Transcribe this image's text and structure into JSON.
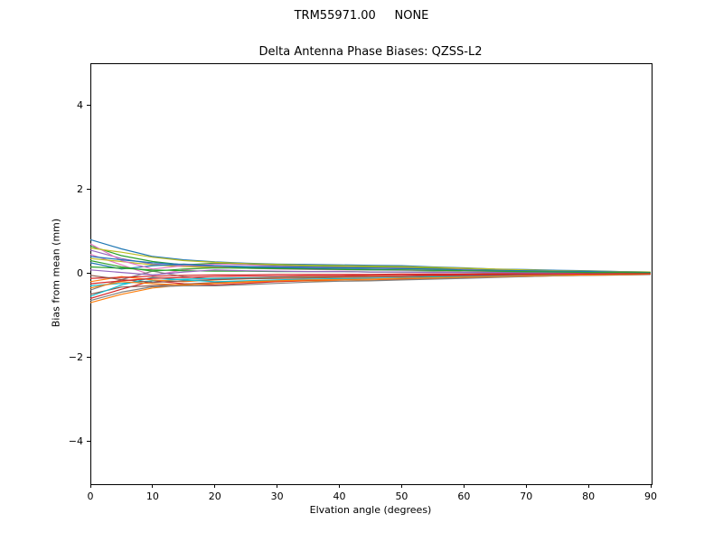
{
  "chart_data": {
    "type": "line",
    "suptitle": "TRM55971.00     NONE",
    "title": "Delta Antenna Phase Biases: QZSS-L2",
    "xlabel": "Elvation angle (degrees)",
    "ylabel": "Bias from mean (mm)",
    "xlim": [
      0,
      90
    ],
    "ylim": [
      -5,
      5
    ],
    "x_ticks": [
      0,
      10,
      20,
      30,
      40,
      50,
      60,
      70,
      80,
      90
    ],
    "y_ticks": [
      -4,
      -2,
      0,
      2,
      4
    ],
    "grid": false,
    "legend": "none",
    "palette": [
      "#1f77b4",
      "#ff7f0e",
      "#2ca02c",
      "#d62728",
      "#9467bd",
      "#8c564b",
      "#e377c2",
      "#7f7f7f",
      "#bcbd22",
      "#17becf"
    ],
    "x": [
      0,
      5,
      10,
      15,
      20,
      25,
      30,
      35,
      40,
      45,
      50,
      55,
      60,
      65,
      70,
      75,
      80,
      85,
      90
    ],
    "series": [
      [
        0.8,
        0.58,
        0.4,
        0.32,
        0.27,
        0.24,
        0.22,
        0.21,
        0.2,
        0.19,
        0.18,
        0.15,
        0.13,
        0.1,
        0.09,
        0.07,
        0.06,
        0.04,
        0.03
      ],
      [
        -0.7,
        -0.5,
        -0.35,
        -0.28,
        -0.24,
        -0.21,
        -0.2,
        -0.18,
        -0.18,
        -0.17,
        -0.15,
        -0.13,
        -0.11,
        -0.09,
        -0.08,
        -0.06,
        -0.05,
        -0.04,
        -0.03
      ],
      [
        0.65,
        0.42,
        0.28,
        0.2,
        0.24,
        0.22,
        0.19,
        0.17,
        0.16,
        0.15,
        0.14,
        0.12,
        0.1,
        0.08,
        0.07,
        0.05,
        0.04,
        0.03,
        0.02
      ],
      [
        -0.6,
        -0.38,
        -0.18,
        -0.25,
        -0.28,
        -0.24,
        -0.2,
        -0.17,
        -0.15,
        -0.14,
        -0.13,
        -0.11,
        -0.09,
        -0.08,
        -0.06,
        -0.05,
        -0.04,
        -0.03,
        -0.02
      ],
      [
        0.55,
        0.35,
        0.22,
        0.18,
        0.16,
        0.15,
        0.14,
        0.13,
        0.13,
        0.12,
        0.11,
        0.1,
        0.08,
        0.07,
        0.06,
        0.04,
        0.03,
        0.02,
        0.02
      ],
      [
        -0.5,
        -0.33,
        -0.3,
        -0.26,
        -0.22,
        -0.19,
        -0.17,
        -0.15,
        -0.14,
        -0.13,
        -0.12,
        -0.1,
        -0.09,
        -0.07,
        -0.06,
        -0.05,
        -0.04,
        -0.03,
        -0.02
      ],
      [
        0.45,
        0.2,
        -0.05,
        0.08,
        0.15,
        0.12,
        0.1,
        0.09,
        0.08,
        0.08,
        0.07,
        0.06,
        0.05,
        0.04,
        0.04,
        0.03,
        0.02,
        0.02,
        0.01
      ],
      [
        -0.4,
        -0.15,
        0.05,
        -0.08,
        -0.14,
        -0.12,
        -0.1,
        -0.09,
        -0.08,
        -0.08,
        -0.07,
        -0.06,
        -0.05,
        -0.04,
        -0.03,
        -0.03,
        -0.02,
        -0.01,
        -0.01
      ],
      [
        0.35,
        0.28,
        0.2,
        0.16,
        0.14,
        0.12,
        0.11,
        0.1,
        0.1,
        0.09,
        0.08,
        0.07,
        0.06,
        0.05,
        0.04,
        0.03,
        0.03,
        0.02,
        0.01
      ],
      [
        -0.3,
        -0.24,
        -0.18,
        -0.14,
        -0.12,
        -0.11,
        -0.1,
        -0.09,
        -0.09,
        -0.08,
        -0.08,
        -0.07,
        -0.06,
        -0.05,
        -0.04,
        -0.03,
        -0.02,
        -0.02,
        -0.01
      ],
      [
        0.25,
        0.1,
        0.18,
        0.22,
        0.18,
        0.14,
        0.12,
        0.11,
        0.1,
        0.09,
        0.08,
        0.07,
        0.06,
        0.05,
        0.04,
        0.03,
        0.02,
        0.02,
        0.01
      ],
      [
        -0.2,
        -0.08,
        -0.16,
        -0.2,
        -0.16,
        -0.13,
        -0.11,
        -0.1,
        -0.09,
        -0.08,
        -0.08,
        -0.07,
        -0.06,
        -0.05,
        -0.04,
        -0.03,
        -0.02,
        -0.02,
        -0.01
      ],
      [
        0.15,
        0.12,
        0.08,
        0.06,
        0.05,
        0.05,
        0.04,
        0.04,
        0.04,
        0.03,
        0.03,
        0.03,
        0.02,
        0.02,
        0.02,
        0.01,
        0.01,
        0.01,
        0.0
      ],
      [
        -0.12,
        -0.1,
        -0.07,
        -0.05,
        -0.04,
        -0.04,
        -0.03,
        -0.03,
        -0.03,
        -0.03,
        -0.02,
        -0.02,
        -0.02,
        -0.01,
        -0.01,
        -0.01,
        -0.01,
        0.0,
        0.0
      ],
      [
        0.08,
        0.02,
        -0.04,
        0.03,
        0.08,
        0.06,
        0.05,
        0.04,
        0.04,
        0.03,
        0.03,
        0.02,
        0.02,
        0.02,
        0.01,
        0.01,
        0.01,
        0.0,
        0.0
      ],
      [
        -0.05,
        -0.15,
        -0.22,
        -0.18,
        -0.15,
        -0.13,
        -0.12,
        -0.11,
        -0.1,
        -0.09,
        -0.08,
        -0.07,
        -0.06,
        -0.05,
        -0.04,
        -0.03,
        -0.03,
        -0.02,
        -0.01
      ],
      [
        0.7,
        0.3,
        0.1,
        0.18,
        0.22,
        0.2,
        0.17,
        0.15,
        0.14,
        0.13,
        0.12,
        0.1,
        0.09,
        0.07,
        0.06,
        0.05,
        0.04,
        0.03,
        0.02
      ],
      [
        -0.65,
        -0.45,
        -0.32,
        -0.3,
        -0.3,
        -0.27,
        -0.24,
        -0.21,
        -0.19,
        -0.18,
        -0.16,
        -0.14,
        -0.12,
        -0.1,
        -0.08,
        -0.06,
        -0.05,
        -0.04,
        -0.03
      ],
      [
        0.6,
        0.5,
        0.38,
        0.3,
        0.26,
        0.23,
        0.21,
        0.19,
        0.18,
        0.17,
        0.16,
        0.14,
        0.12,
        0.1,
        0.08,
        0.06,
        0.05,
        0.04,
        0.03
      ],
      [
        -0.55,
        -0.28,
        -0.1,
        -0.16,
        -0.2,
        -0.18,
        -0.16,
        -0.14,
        -0.13,
        -0.12,
        -0.11,
        -0.09,
        -0.08,
        -0.07,
        -0.05,
        -0.04,
        -0.03,
        -0.02,
        -0.02
      ],
      [
        0.4,
        0.32,
        0.25,
        0.21,
        0.18,
        0.16,
        0.15,
        0.14,
        0.13,
        0.12,
        0.11,
        0.1,
        0.08,
        0.07,
        0.06,
        0.05,
        0.04,
        0.03,
        0.02
      ],
      [
        -0.35,
        -0.2,
        -0.25,
        -0.28,
        -0.24,
        -0.2,
        -0.18,
        -0.16,
        -0.15,
        -0.14,
        -0.12,
        -0.11,
        -0.09,
        -0.08,
        -0.06,
        -0.05,
        -0.04,
        -0.03,
        -0.02
      ],
      [
        0.3,
        0.15,
        0.05,
        0.1,
        0.13,
        0.12,
        0.11,
        0.1,
        0.09,
        0.08,
        0.08,
        0.07,
        0.06,
        0.05,
        0.04,
        0.03,
        0.02,
        0.02,
        0.01
      ],
      [
        -0.25,
        -0.18,
        -0.12,
        -0.1,
        -0.08,
        -0.07,
        -0.07,
        -0.06,
        -0.06,
        -0.05,
        -0.05,
        -0.04,
        -0.04,
        -0.03,
        -0.03,
        -0.02,
        -0.02,
        -0.01,
        -0.01
      ]
    ]
  }
}
